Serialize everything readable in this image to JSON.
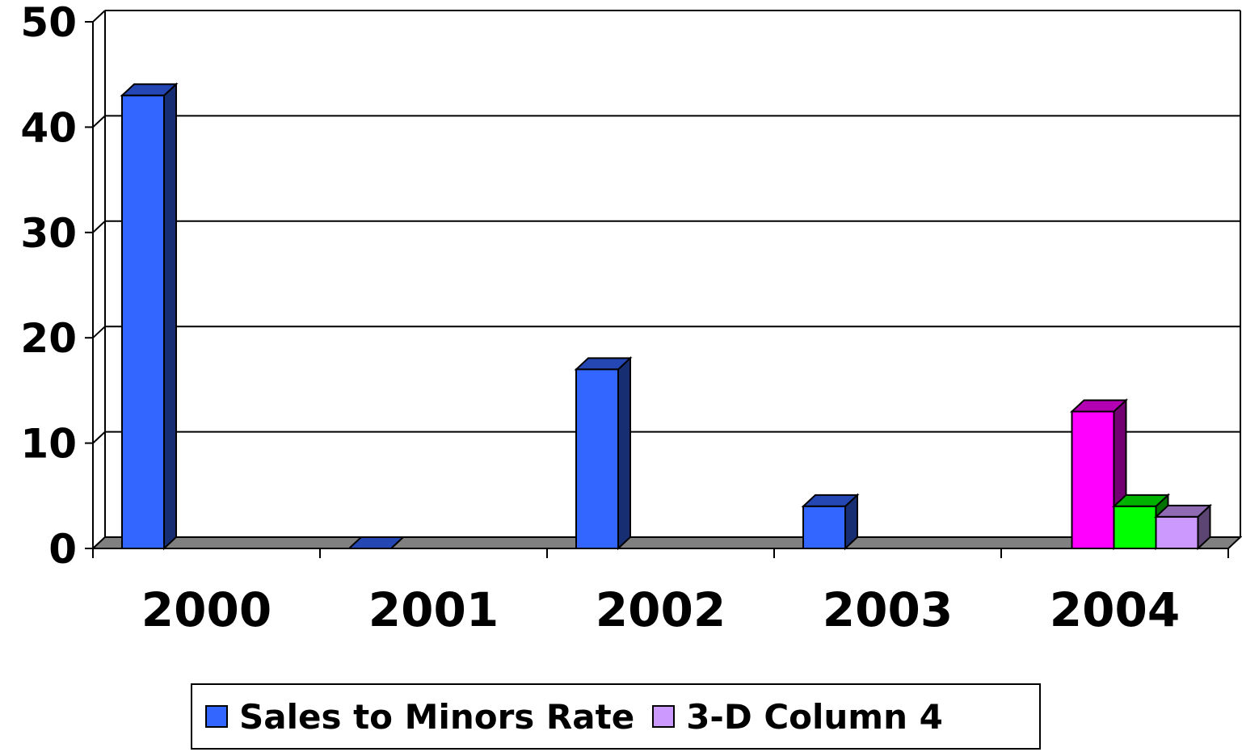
{
  "chart_data": {
    "type": "bar",
    "style": "3d-column",
    "categories": [
      "2000",
      "2001",
      "2002",
      "2003",
      "2004"
    ],
    "ylim": [
      0,
      50
    ],
    "yticks": [
      "0",
      "10",
      "20",
      "30",
      "40",
      "50"
    ],
    "grid": true,
    "legend_position": "bottom",
    "bars": [
      {
        "category": "2000",
        "series": "Sales to Minors Rate",
        "value": 43,
        "color": "#3366ff"
      },
      {
        "category": "2001",
        "series": "Sales to Minors Rate",
        "value": 0,
        "color": "#3366ff"
      },
      {
        "category": "2002",
        "series": "Sales to Minors Rate",
        "value": 17,
        "color": "#3366ff"
      },
      {
        "category": "2003",
        "series": "Sales to Minors Rate",
        "value": 4,
        "color": "#3366ff"
      },
      {
        "category": "2004",
        "series": "",
        "value": 13,
        "color": "#ff00ff"
      },
      {
        "category": "2004",
        "series": "",
        "value": 4,
        "color": "#00ff00"
      },
      {
        "category": "2004",
        "series": "3-D Column 4",
        "value": 3,
        "color": "#cc99ff"
      }
    ],
    "legend": [
      {
        "name": "Sales to Minors Rate",
        "color": "#3366ff"
      },
      {
        "name": "3-D Column 4",
        "color": "#cc99ff"
      }
    ]
  }
}
